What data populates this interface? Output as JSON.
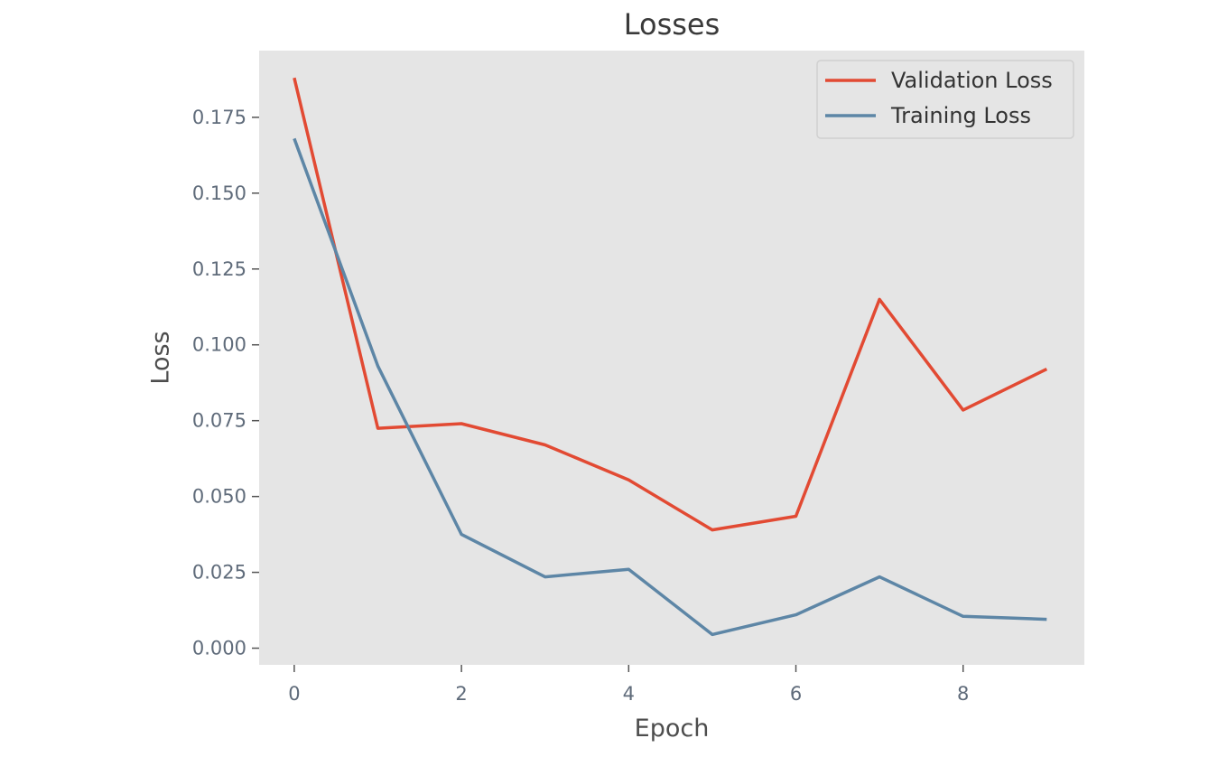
{
  "chart_data": {
    "type": "line",
    "title": "Losses",
    "xlabel": "Epoch",
    "ylabel": "Loss",
    "x": [
      0,
      1,
      2,
      3,
      4,
      5,
      6,
      7,
      8,
      9
    ],
    "xlim": [
      -0.42,
      9.45
    ],
    "ylim": [
      -0.0055,
      0.197
    ],
    "xticks": [
      0,
      2,
      4,
      6,
      8
    ],
    "xtick_labels": [
      "0",
      "2",
      "4",
      "6",
      "8"
    ],
    "yticks": [
      0.0,
      0.025,
      0.05,
      0.075,
      0.1,
      0.125,
      0.15,
      0.175
    ],
    "ytick_labels": [
      "0.000",
      "0.025",
      "0.050",
      "0.075",
      "0.100",
      "0.125",
      "0.150",
      "0.175"
    ],
    "grid": false,
    "legend_position": "top-right",
    "series": [
      {
        "name": "Validation Loss",
        "color": "#e24a33",
        "values": [
          0.188,
          0.0725,
          0.074,
          0.067,
          0.0555,
          0.039,
          0.0435,
          0.115,
          0.0785,
          0.092
        ]
      },
      {
        "name": "Training Loss",
        "color": "#5d86a6",
        "values": [
          0.168,
          0.093,
          0.0375,
          0.0235,
          0.026,
          0.0045,
          0.011,
          0.0235,
          0.0105,
          0.0095
        ]
      }
    ],
    "colors": {
      "plot_background": "#e5e5e5"
    }
  }
}
